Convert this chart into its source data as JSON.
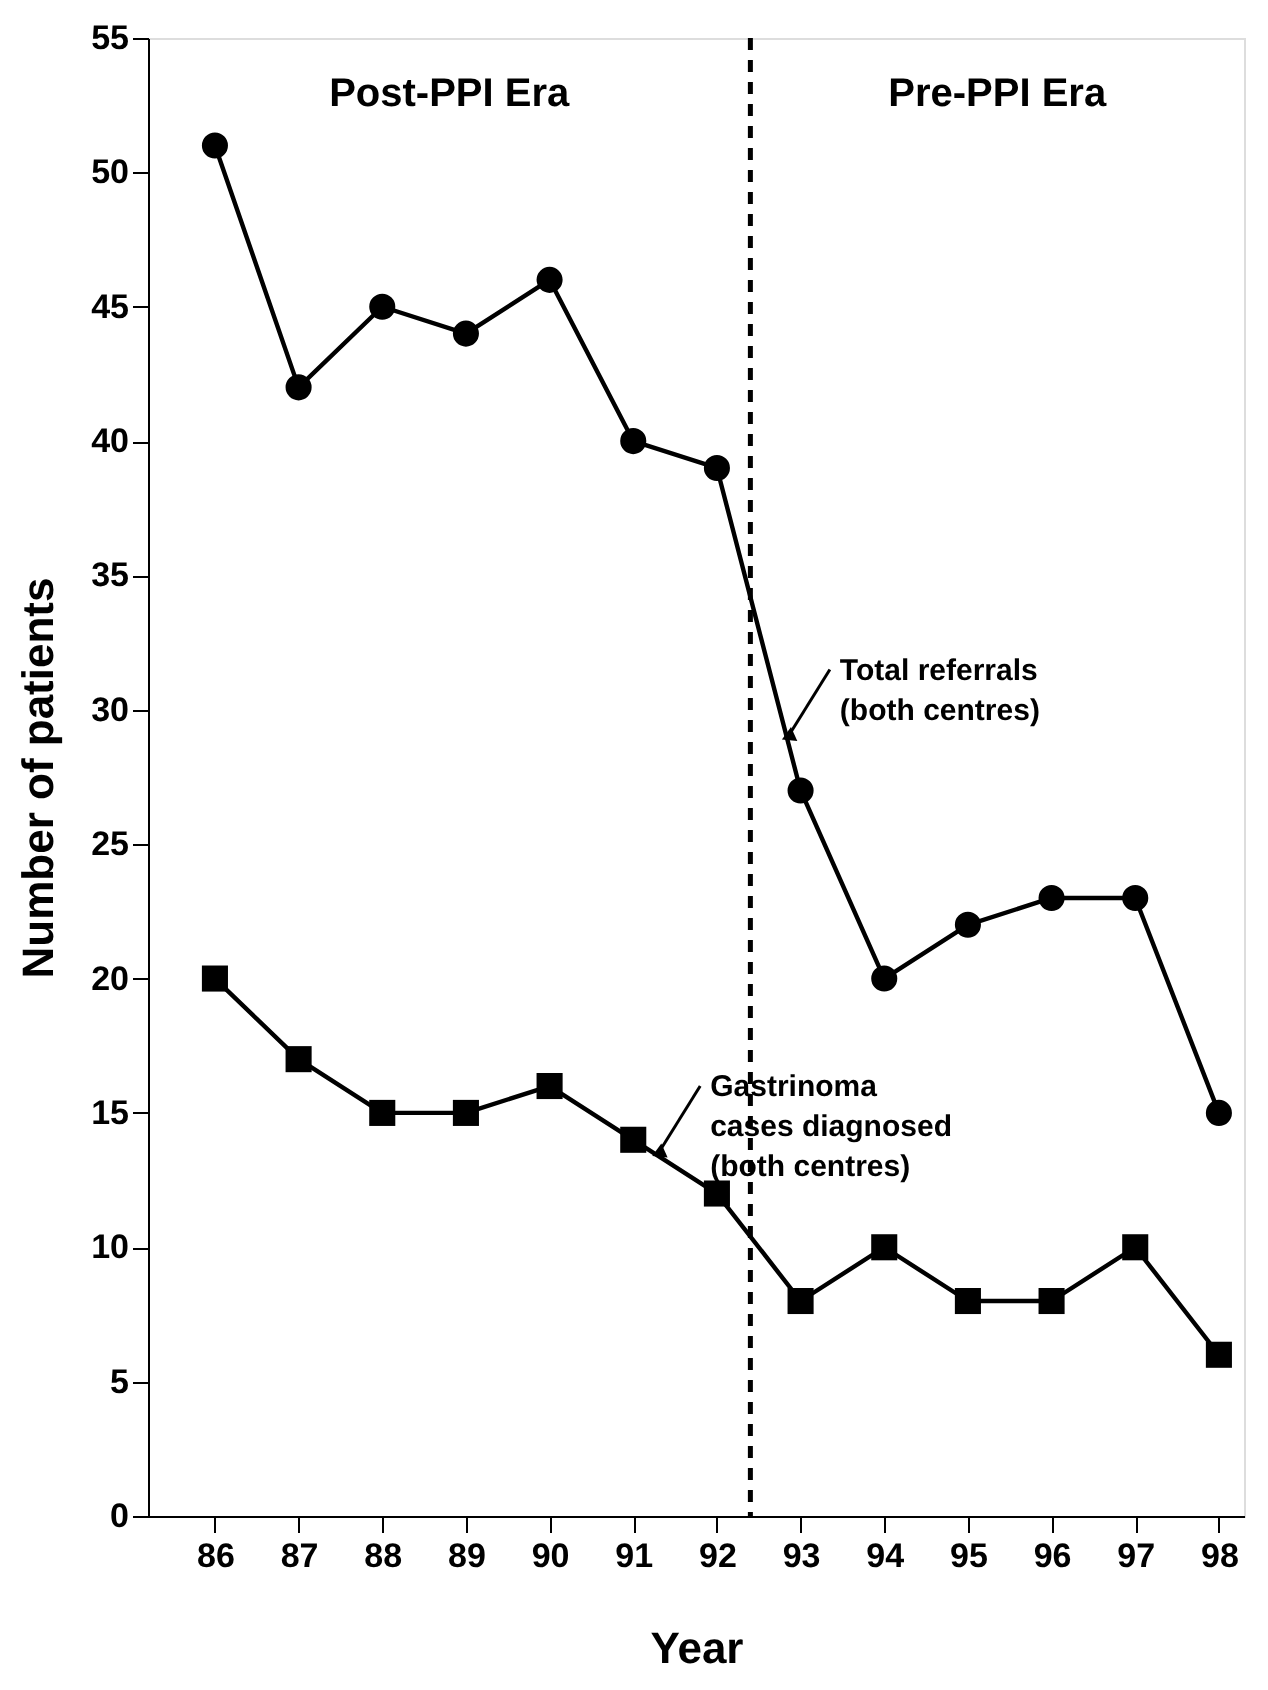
{
  "chart_data": {
    "type": "line",
    "xlabel": "Year",
    "ylabel": "Number of patients",
    "x": [
      86,
      87,
      88,
      89,
      90,
      91,
      92,
      93,
      94,
      95,
      96,
      97,
      98
    ],
    "xlim": [
      85.2,
      98.3
    ],
    "xticks": [
      86,
      87,
      88,
      89,
      90,
      91,
      92,
      93,
      94,
      95,
      96,
      97,
      98
    ],
    "ylim": [
      0,
      55
    ],
    "yticks": [
      0,
      5,
      10,
      15,
      20,
      25,
      30,
      35,
      40,
      45,
      50,
      55
    ],
    "grid": false,
    "line_style": "solid",
    "series": [
      {
        "color": "#000000",
        "marker": "circle",
        "values": [
          51,
          42,
          45,
          44,
          46,
          40,
          39,
          27,
          20,
          22,
          23,
          23,
          15
        ]
      },
      {
        "color": "#000000",
        "marker": "square",
        "values": [
          20,
          17,
          15,
          15,
          16,
          14,
          12,
          8,
          10,
          8,
          8,
          10,
          6
        ]
      }
    ],
    "ref_lines": [
      {
        "axis": "x",
        "value": 92.4,
        "label": null,
        "line_style": "dashed",
        "color": "#000000"
      }
    ],
    "annotations": [
      "Post-PPI Era",
      "Pre-PPI Era",
      {
        "text": "Total referrals\n(both centres)",
        "x": 92.85,
        "y": 29
      },
      {
        "text": "Gastrinoma\ncases diagnosed\n(both centres)",
        "x": 91.3,
        "y": 13.5
      }
    ]
  }
}
